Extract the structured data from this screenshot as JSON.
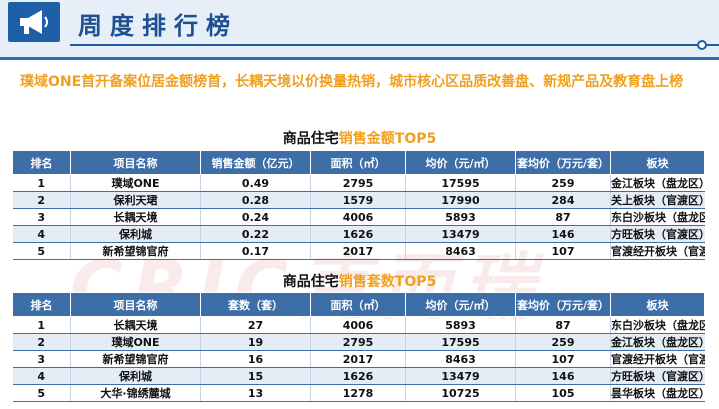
{
  "header": {
    "title": "周度排行榜",
    "icon": "megaphone-icon",
    "accent_color": "#1f5fa8"
  },
  "summary": "璞域ONE首开备案位居金额榜首，长耦天境以价换量热销，城市核心区品质改善盘、新规产品及教育盘上榜",
  "table_amount": {
    "title_prefix": "商品住宅",
    "title_accent": "销售金额TOP5",
    "headers": [
      "排名",
      "项目名称",
      "销售金额（亿元）",
      "面积（㎡）",
      "均价（元/㎡）",
      "套均价（万元/套）",
      "板块"
    ],
    "rows": [
      [
        "1",
        "璞域ONE",
        "0.49",
        "2795",
        "17595",
        "259",
        "金江板块（盘龙区）"
      ],
      [
        "2",
        "保利天珺",
        "0.28",
        "1579",
        "17990",
        "284",
        "关上板块（官渡区）"
      ],
      [
        "3",
        "长耦天境",
        "0.24",
        "4006",
        "5893",
        "87",
        "东白沙板块（盘龙区）"
      ],
      [
        "4",
        "保利城",
        "0.22",
        "1626",
        "13479",
        "146",
        "方旺板块（官渡区）"
      ],
      [
        "5",
        "新希望锦官府",
        "0.17",
        "2017",
        "8463",
        "107",
        "官渡经开板块（官渡区）"
      ]
    ]
  },
  "table_units": {
    "title_prefix": "商品住宅",
    "title_accent": "销售套数TOP5",
    "headers": [
      "排名",
      "项目名称",
      "套数（套）",
      "面积（㎡）",
      "均价（元/㎡）",
      "套均价（万元/套）",
      "板块"
    ],
    "rows": [
      [
        "1",
        "长耦天境",
        "27",
        "4006",
        "5893",
        "87",
        "东白沙板块（盘龙区）"
      ],
      [
        "2",
        "璞域ONE",
        "19",
        "2795",
        "17595",
        "259",
        "金江板块（盘龙区）"
      ],
      [
        "3",
        "新希望锦官府",
        "16",
        "2017",
        "8463",
        "107",
        "官渡经开板块（官渡区）"
      ],
      [
        "4",
        "保利城",
        "15",
        "1626",
        "13479",
        "146",
        "方旺板块（官渡区）"
      ],
      [
        "5",
        "大华·锦绣麓城",
        "13",
        "1278",
        "10725",
        "105",
        "昙华板块（盘龙区）"
      ]
    ]
  },
  "watermark": "CRIC克而瑞"
}
